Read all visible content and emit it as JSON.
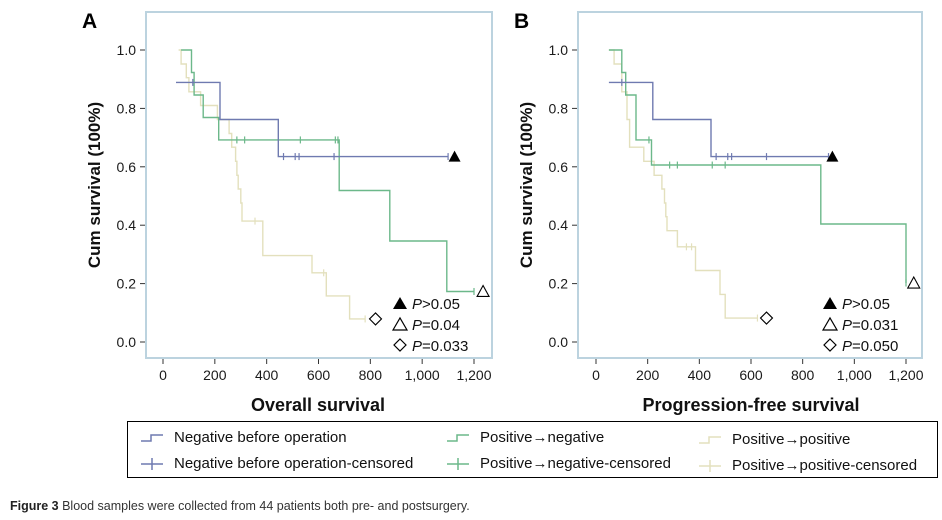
{
  "figure": {
    "caption_label": "Figure 3",
    "caption_text": " Blood samples were collected from 44 patients both pre- and postsurgery."
  },
  "colors": {
    "negative_before_operation": "#6f7ab0",
    "positive_to_negative": "#6cb88a",
    "positive_to_positive": "#e3e0bd",
    "frame": "#bcd3df"
  },
  "legend": {
    "items": [
      {
        "key": "neg",
        "label": "Negative before operation",
        "kind": "line"
      },
      {
        "key": "neg",
        "label": "Negative before operation-censored",
        "kind": "censor"
      },
      {
        "key": "p2n",
        "label": "Positive→negative",
        "kind": "line"
      },
      {
        "key": "p2n",
        "label": "Positive→negative-censored",
        "kind": "censor"
      },
      {
        "key": "p2p",
        "label": "Positive→positive",
        "kind": "line"
      },
      {
        "key": "p2p",
        "label": "Positive→positive-censored",
        "kind": "censor"
      }
    ]
  },
  "chart_data": [
    {
      "type": "line",
      "subtype": "kaplan-meier step",
      "panel": "A",
      "title": "",
      "xlabel": "Overall survival",
      "ylabel": "Cum survival (100%)",
      "xlim": [
        -60,
        1260
      ],
      "ylim": [
        -0.07,
        1.1
      ],
      "xticks": [
        0,
        200,
        400,
        600,
        800,
        1000,
        1200
      ],
      "xtick_labels": [
        "0",
        "200",
        "400",
        "600",
        "800",
        "1,000",
        "1,200"
      ],
      "yticks": [
        0.0,
        0.2,
        0.4,
        0.6,
        0.8,
        1.0
      ],
      "ytick_labels": [
        "0.0",
        "0.2",
        "0.4",
        "0.6",
        "0.8",
        "1.0"
      ],
      "grid": false,
      "series": [
        {
          "name": "Negative before operation",
          "color_key": "negative_before_operation",
          "steps": [
            [
              50,
              0.889
            ],
            [
              220,
              0.889
            ],
            [
              220,
              0.762
            ],
            [
              445,
              0.762
            ],
            [
              445,
              0.635
            ],
            [
              1100,
              0.635
            ]
          ],
          "censored": [
            [
              115,
              0.889
            ],
            [
              465,
              0.635
            ],
            [
              510,
              0.635
            ],
            [
              525,
              0.635
            ],
            [
              660,
              0.635
            ],
            [
              1100,
              0.635
            ]
          ],
          "end_marker": {
            "symbol": "filled-triangle",
            "x": 1125,
            "y": 0.635
          }
        },
        {
          "name": "Positive→negative",
          "color_key": "positive_to_negative",
          "steps": [
            [
              70,
              1.0
            ],
            [
              110,
              1.0
            ],
            [
              110,
              0.923
            ],
            [
              120,
              0.923
            ],
            [
              120,
              0.846
            ],
            [
              155,
              0.846
            ],
            [
              155,
              0.769
            ],
            [
              215,
              0.769
            ],
            [
              215,
              0.692
            ],
            [
              680,
              0.692
            ],
            [
              680,
              0.519
            ],
            [
              875,
              0.519
            ],
            [
              875,
              0.346
            ],
            [
              1095,
              0.346
            ],
            [
              1095,
              0.173
            ],
            [
              1200,
              0.173
            ]
          ],
          "censored": [
            [
              285,
              0.692
            ],
            [
              315,
              0.692
            ],
            [
              530,
              0.692
            ],
            [
              665,
              0.692
            ],
            [
              675,
              0.692
            ],
            [
              1200,
              0.173
            ]
          ],
          "end_marker": {
            "symbol": "open-triangle",
            "x": 1235,
            "y": 0.173
          }
        },
        {
          "name": "Positive→positive",
          "color_key": "positive_to_positive",
          "steps": [
            [
              60,
              1.0
            ],
            [
              70,
              1.0
            ],
            [
              70,
              0.952
            ],
            [
              90,
              0.952
            ],
            [
              90,
              0.905
            ],
            [
              100,
              0.905
            ],
            [
              100,
              0.857
            ],
            [
              145,
              0.857
            ],
            [
              145,
              0.81
            ],
            [
              210,
              0.81
            ],
            [
              210,
              0.762
            ],
            [
              255,
              0.762
            ],
            [
              255,
              0.714
            ],
            [
              265,
              0.714
            ],
            [
              265,
              0.667
            ],
            [
              280,
              0.667
            ],
            [
              280,
              0.619
            ],
            [
              285,
              0.619
            ],
            [
              285,
              0.571
            ],
            [
              290,
              0.571
            ],
            [
              290,
              0.524
            ],
            [
              300,
              0.524
            ],
            [
              300,
              0.476
            ],
            [
              305,
              0.476
            ],
            [
              305,
              0.414
            ],
            [
              385,
              0.414
            ],
            [
              385,
              0.296
            ],
            [
              575,
              0.296
            ],
            [
              575,
              0.237
            ],
            [
              630,
              0.237
            ],
            [
              630,
              0.158
            ],
            [
              720,
              0.158
            ],
            [
              720,
              0.079
            ],
            [
              780,
              0.079
            ]
          ],
          "censored": [
            [
              355,
              0.414
            ],
            [
              620,
              0.237
            ],
            [
              780,
              0.079
            ]
          ],
          "end_marker": {
            "symbol": "open-diamond",
            "x": 820,
            "y": 0.079
          }
        }
      ],
      "annotations": [
        {
          "symbol": "filled-triangle",
          "italic": "P",
          "text": ">0.05"
        },
        {
          "symbol": "open-triangle",
          "italic": "P",
          "text": "=0.04"
        },
        {
          "symbol": "open-diamond",
          "italic": "P",
          "text": "=0.033"
        }
      ]
    },
    {
      "type": "line",
      "subtype": "kaplan-meier step",
      "panel": "B",
      "title": "",
      "xlabel": "Progression-free survival",
      "ylabel": "Cum survival (100%)",
      "xlim": [
        -60,
        1260
      ],
      "ylim": [
        -0.07,
        1.1
      ],
      "xticks": [
        0,
        200,
        400,
        600,
        800,
        1000,
        1200
      ],
      "xtick_labels": [
        "0",
        "200",
        "400",
        "600",
        "800",
        "1,000",
        "1,200"
      ],
      "yticks": [
        0.0,
        0.2,
        0.4,
        0.6,
        0.8,
        1.0
      ],
      "ytick_labels": [
        "0.0",
        "0.2",
        "0.4",
        "0.6",
        "0.8",
        "1.0"
      ],
      "grid": false,
      "series": [
        {
          "name": "Negative before operation",
          "color_key": "negative_before_operation",
          "steps": [
            [
              50,
              0.889
            ],
            [
              220,
              0.889
            ],
            [
              220,
              0.762
            ],
            [
              445,
              0.762
            ],
            [
              445,
              0.635
            ],
            [
              900,
              0.635
            ]
          ],
          "censored": [
            [
              100,
              0.889
            ],
            [
              465,
              0.635
            ],
            [
              510,
              0.635
            ],
            [
              525,
              0.635
            ],
            [
              660,
              0.635
            ],
            [
              900,
              0.635
            ]
          ],
          "end_marker": {
            "symbol": "filled-triangle",
            "x": 915,
            "y": 0.635
          }
        },
        {
          "name": "Positive→negative",
          "color_key": "positive_to_negative",
          "steps": [
            [
              50,
              1.0
            ],
            [
              100,
              1.0
            ],
            [
              100,
              0.923
            ],
            [
              115,
              0.923
            ],
            [
              115,
              0.846
            ],
            [
              155,
              0.846
            ],
            [
              155,
              0.692
            ],
            [
              215,
              0.692
            ],
            [
              215,
              0.606
            ],
            [
              870,
              0.606
            ],
            [
              870,
              0.404
            ],
            [
              1200,
              0.404
            ],
            [
              1200,
              0.202
            ]
          ],
          "censored": [
            [
              205,
              0.692
            ],
            [
              285,
              0.606
            ],
            [
              315,
              0.606
            ],
            [
              450,
              0.606
            ],
            [
              500,
              0.606
            ],
            [
              1200,
              0.202
            ]
          ],
          "end_marker": {
            "symbol": "open-triangle",
            "x": 1230,
            "y": 0.202
          }
        },
        {
          "name": "Positive→positive",
          "color_key": "positive_to_positive",
          "steps": [
            [
              50,
              1.0
            ],
            [
              70,
              1.0
            ],
            [
              70,
              0.952
            ],
            [
              100,
              0.952
            ],
            [
              100,
              0.857
            ],
            [
              120,
              0.857
            ],
            [
              120,
              0.762
            ],
            [
              130,
              0.762
            ],
            [
              130,
              0.667
            ],
            [
              185,
              0.667
            ],
            [
              185,
              0.619
            ],
            [
              225,
              0.619
            ],
            [
              225,
              0.571
            ],
            [
              255,
              0.571
            ],
            [
              255,
              0.524
            ],
            [
              265,
              0.524
            ],
            [
              265,
              0.476
            ],
            [
              270,
              0.476
            ],
            [
              270,
              0.429
            ],
            [
              275,
              0.429
            ],
            [
              275,
              0.381
            ],
            [
              315,
              0.381
            ],
            [
              315,
              0.326
            ],
            [
              385,
              0.326
            ],
            [
              385,
              0.245
            ],
            [
              480,
              0.245
            ],
            [
              480,
              0.163
            ],
            [
              500,
              0.163
            ],
            [
              500,
              0.082
            ],
            [
              625,
              0.082
            ]
          ],
          "censored": [
            [
              350,
              0.326
            ],
            [
              370,
              0.326
            ],
            [
              625,
              0.082
            ]
          ],
          "end_marker": {
            "symbol": "open-diamond",
            "x": 660,
            "y": 0.082
          }
        }
      ],
      "annotations": [
        {
          "symbol": "filled-triangle",
          "italic": "P",
          "text": ">0.05"
        },
        {
          "symbol": "open-triangle",
          "italic": "P",
          "text": "=0.031"
        },
        {
          "symbol": "open-diamond",
          "italic": "P",
          "text": "=0.050"
        }
      ]
    }
  ],
  "panels": {
    "a": {
      "letter": "A",
      "ylabel": "Cum survival (100%)",
      "xlabel": "Overall survival",
      "pvals": [
        {
          "p": "P",
          "t": ">0.05"
        },
        {
          "p": "P",
          "t": "=0.04"
        },
        {
          "p": "P",
          "t": "=0.033"
        }
      ]
    },
    "b": {
      "letter": "B",
      "ylabel": "Cum survival (100%)",
      "xlabel": "Progression-free survival",
      "pvals": [
        {
          "p": "P",
          "t": ">0.05"
        },
        {
          "p": "P",
          "t": "=0.031"
        },
        {
          "p": "P",
          "t": "=0.050"
        }
      ]
    }
  }
}
